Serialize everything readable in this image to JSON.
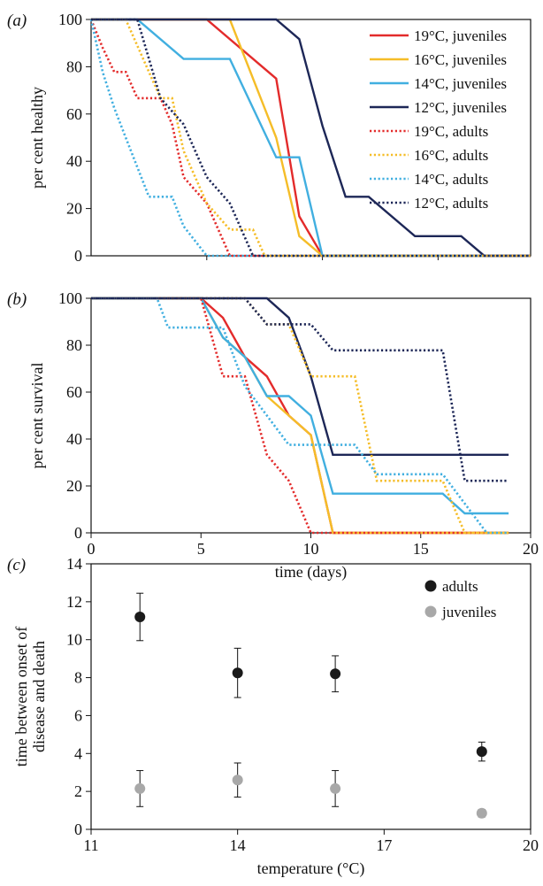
{
  "chart_data": [
    {
      "panel": "(a)",
      "type": "line",
      "xlabel": "",
      "ylabel": "per cent healthy",
      "xlim": [
        0,
        19
      ],
      "ylim": [
        0,
        100
      ],
      "yticks": [
        "0",
        "20",
        "40",
        "60",
        "80",
        "100"
      ],
      "legend_position": "top-right",
      "series": [
        {
          "name": "19°C, juveniles",
          "color": "#e32b2b",
          "style": "solid",
          "points": [
            [
              0,
              100
            ],
            [
              5,
              100
            ],
            [
              8,
              75
            ],
            [
              9,
              16.7
            ],
            [
              10,
              0
            ],
            [
              19,
              0
            ]
          ]
        },
        {
          "name": "16°C, juveniles",
          "color": "#f5bd28",
          "style": "solid",
          "points": [
            [
              0,
              100
            ],
            [
              6,
              100
            ],
            [
              8,
              50
            ],
            [
              9,
              8.3
            ],
            [
              10,
              0
            ],
            [
              19,
              0
            ]
          ]
        },
        {
          "name": "14°C, juveniles",
          "color": "#41afe0",
          "style": "solid",
          "points": [
            [
              0,
              100
            ],
            [
              2,
              100
            ],
            [
              4,
              83.3
            ],
            [
              6,
              83.3
            ],
            [
              8,
              41.7
            ],
            [
              9,
              41.7
            ],
            [
              10,
              0
            ],
            [
              19,
              0
            ]
          ]
        },
        {
          "name": "12°C, juveniles",
          "color": "#1d2757",
          "style": "solid",
          "points": [
            [
              0,
              100
            ],
            [
              8,
              100
            ],
            [
              9,
              91.7
            ],
            [
              10,
              55
            ],
            [
              11,
              25
            ],
            [
              12,
              25
            ],
            [
              14,
              8.3
            ],
            [
              16,
              8.3
            ],
            [
              17,
              0
            ],
            [
              19,
              0
            ]
          ]
        },
        {
          "name": "19°C, adults",
          "color": "#e32b2b",
          "style": "dotted",
          "points": [
            [
              0,
              100
            ],
            [
              0.5,
              88
            ],
            [
              1,
              77.8
            ],
            [
              1.5,
              77.8
            ],
            [
              2,
              66.7
            ],
            [
              3,
              66.7
            ],
            [
              3.5,
              55.6
            ],
            [
              4,
              33.3
            ],
            [
              5,
              22.2
            ],
            [
              5.5,
              11.1
            ],
            [
              6,
              0
            ],
            [
              19,
              0
            ]
          ]
        },
        {
          "name": "16°C, adults",
          "color": "#f5bd28",
          "style": "dotted",
          "points": [
            [
              0,
              100
            ],
            [
              1.5,
              100
            ],
            [
              2,
              88.9
            ],
            [
              3,
              66.7
            ],
            [
              3.5,
              66.7
            ],
            [
              4,
              44.4
            ],
            [
              5,
              22.2
            ],
            [
              6,
              11.1
            ],
            [
              7,
              11.1
            ],
            [
              7.5,
              0
            ],
            [
              19,
              0
            ]
          ]
        },
        {
          "name": "14°C, adults",
          "color": "#41afe0",
          "style": "dotted",
          "points": [
            [
              0,
              100
            ],
            [
              0.5,
              77.8
            ],
            [
              1,
              62.5
            ],
            [
              1.5,
              50
            ],
            [
              2,
              37.5
            ],
            [
              2.5,
              25
            ],
            [
              3.5,
              25
            ],
            [
              4,
              12.5
            ],
            [
              5,
              0
            ],
            [
              19,
              0
            ]
          ]
        },
        {
          "name": "12°C, adults",
          "color": "#1d2757",
          "style": "dotted",
          "points": [
            [
              0,
              100
            ],
            [
              2,
              100
            ],
            [
              3,
              66.7
            ],
            [
              4,
              55.6
            ],
            [
              4.5,
              44.4
            ],
            [
              5,
              33.3
            ],
            [
              6,
              22.2
            ],
            [
              6.5,
              11.1
            ],
            [
              7,
              0
            ],
            [
              19,
              0
            ]
          ]
        }
      ]
    },
    {
      "panel": "(b)",
      "type": "line",
      "xlabel": "time (days)",
      "ylabel": "per cent survival",
      "xlim": [
        0,
        20
      ],
      "ylim": [
        0,
        100
      ],
      "xticks": [
        "0",
        "5",
        "10",
        "15",
        "20"
      ],
      "yticks": [
        "0",
        "20",
        "40",
        "60",
        "80",
        "100"
      ],
      "series": [
        {
          "name": "19°C, juveniles",
          "color": "#e32b2b",
          "style": "solid",
          "points": [
            [
              0,
              100
            ],
            [
              5,
              100
            ],
            [
              6,
              91.7
            ],
            [
              7,
              75
            ],
            [
              8,
              66.7
            ],
            [
              9,
              50
            ],
            [
              10,
              41.7
            ],
            [
              11,
              0
            ],
            [
              19,
              0
            ]
          ]
        },
        {
          "name": "16°C, juveniles",
          "color": "#f5bd28",
          "style": "solid",
          "points": [
            [
              0,
              100
            ],
            [
              5,
              100
            ],
            [
              6,
              83.3
            ],
            [
              7,
              75
            ],
            [
              8,
              58.3
            ],
            [
              9,
              50
            ],
            [
              10,
              41.7
            ],
            [
              11,
              0
            ],
            [
              19,
              0
            ]
          ]
        },
        {
          "name": "14°C, juveniles",
          "color": "#41afe0",
          "style": "solid",
          "points": [
            [
              0,
              100
            ],
            [
              5,
              100
            ],
            [
              6,
              83.3
            ],
            [
              7,
              75
            ],
            [
              8,
              58.3
            ],
            [
              9,
              58.3
            ],
            [
              10,
              50
            ],
            [
              11,
              16.7
            ],
            [
              16,
              16.7
            ],
            [
              17,
              8.3
            ],
            [
              19,
              8.3
            ]
          ]
        },
        {
          "name": "12°C, juveniles",
          "color": "#1d2757",
          "style": "solid",
          "points": [
            [
              0,
              100
            ],
            [
              8,
              100
            ],
            [
              9,
              91.7
            ],
            [
              10,
              66.7
            ],
            [
              11,
              33.3
            ],
            [
              19,
              33.3
            ]
          ]
        },
        {
          "name": "19°C, adults",
          "color": "#e32b2b",
          "style": "dotted",
          "points": [
            [
              0,
              100
            ],
            [
              5,
              100
            ],
            [
              6,
              66.7
            ],
            [
              7,
              66.7
            ],
            [
              8,
              33.3
            ],
            [
              9,
              22.2
            ],
            [
              10,
              0
            ],
            [
              19,
              0
            ]
          ]
        },
        {
          "name": "16°C, adults",
          "color": "#f5bd28",
          "style": "dotted",
          "points": [
            [
              0,
              100
            ],
            [
              7,
              100
            ],
            [
              8,
              88.9
            ],
            [
              9,
              88.9
            ],
            [
              10,
              66.7
            ],
            [
              12,
              66.7
            ],
            [
              13,
              22.2
            ],
            [
              16,
              22.2
            ],
            [
              17,
              0
            ],
            [
              19,
              0
            ]
          ]
        },
        {
          "name": "14°C, adults",
          "color": "#41afe0",
          "style": "dotted",
          "points": [
            [
              0,
              100
            ],
            [
              3,
              100
            ],
            [
              3.5,
              87.5
            ],
            [
              6,
              87.5
            ],
            [
              7,
              62.5
            ],
            [
              8,
              50
            ],
            [
              9,
              37.5
            ],
            [
              12,
              37.5
            ],
            [
              13,
              25
            ],
            [
              16,
              25
            ],
            [
              17,
              12.5
            ],
            [
              18,
              0
            ],
            [
              19,
              0
            ]
          ]
        },
        {
          "name": "12°C, adults",
          "color": "#1d2757",
          "style": "dotted",
          "points": [
            [
              0,
              100
            ],
            [
              7,
              100
            ],
            [
              8,
              88.9
            ],
            [
              10,
              88.9
            ],
            [
              11,
              77.8
            ],
            [
              16,
              77.8
            ],
            [
              17,
              22.2
            ],
            [
              19,
              22.2
            ]
          ]
        }
      ]
    },
    {
      "panel": "(c)",
      "type": "scatter",
      "xlabel": "temperature (°C)",
      "ylabel_lines": [
        "time between onset of",
        "disease and death"
      ],
      "xlim": [
        11,
        20
      ],
      "ylim": [
        0,
        14
      ],
      "xticks": [
        "11",
        "14",
        "17",
        "20"
      ],
      "yticks": [
        "0",
        "2",
        "4",
        "6",
        "8",
        "10",
        "12",
        "14"
      ],
      "legend_position": "top-right",
      "series": [
        {
          "name": "adults",
          "color": "#1a1a1a",
          "points": [
            {
              "x": 12,
              "y": 11.2,
              "err": 1.25
            },
            {
              "x": 14,
              "y": 8.25,
              "err": 1.3
            },
            {
              "x": 16,
              "y": 8.2,
              "err": 0.95
            },
            {
              "x": 19,
              "y": 4.1,
              "err": 0.5
            }
          ]
        },
        {
          "name": "juveniles",
          "color": "#a8a8a8",
          "points": [
            {
              "x": 12,
              "y": 2.15,
              "err": 0.95
            },
            {
              "x": 14,
              "y": 2.6,
              "err": 0.9
            },
            {
              "x": 16,
              "y": 2.15,
              "err": 0.95
            },
            {
              "x": 19,
              "y": 0.85,
              "err": 0.2
            }
          ]
        }
      ]
    }
  ]
}
